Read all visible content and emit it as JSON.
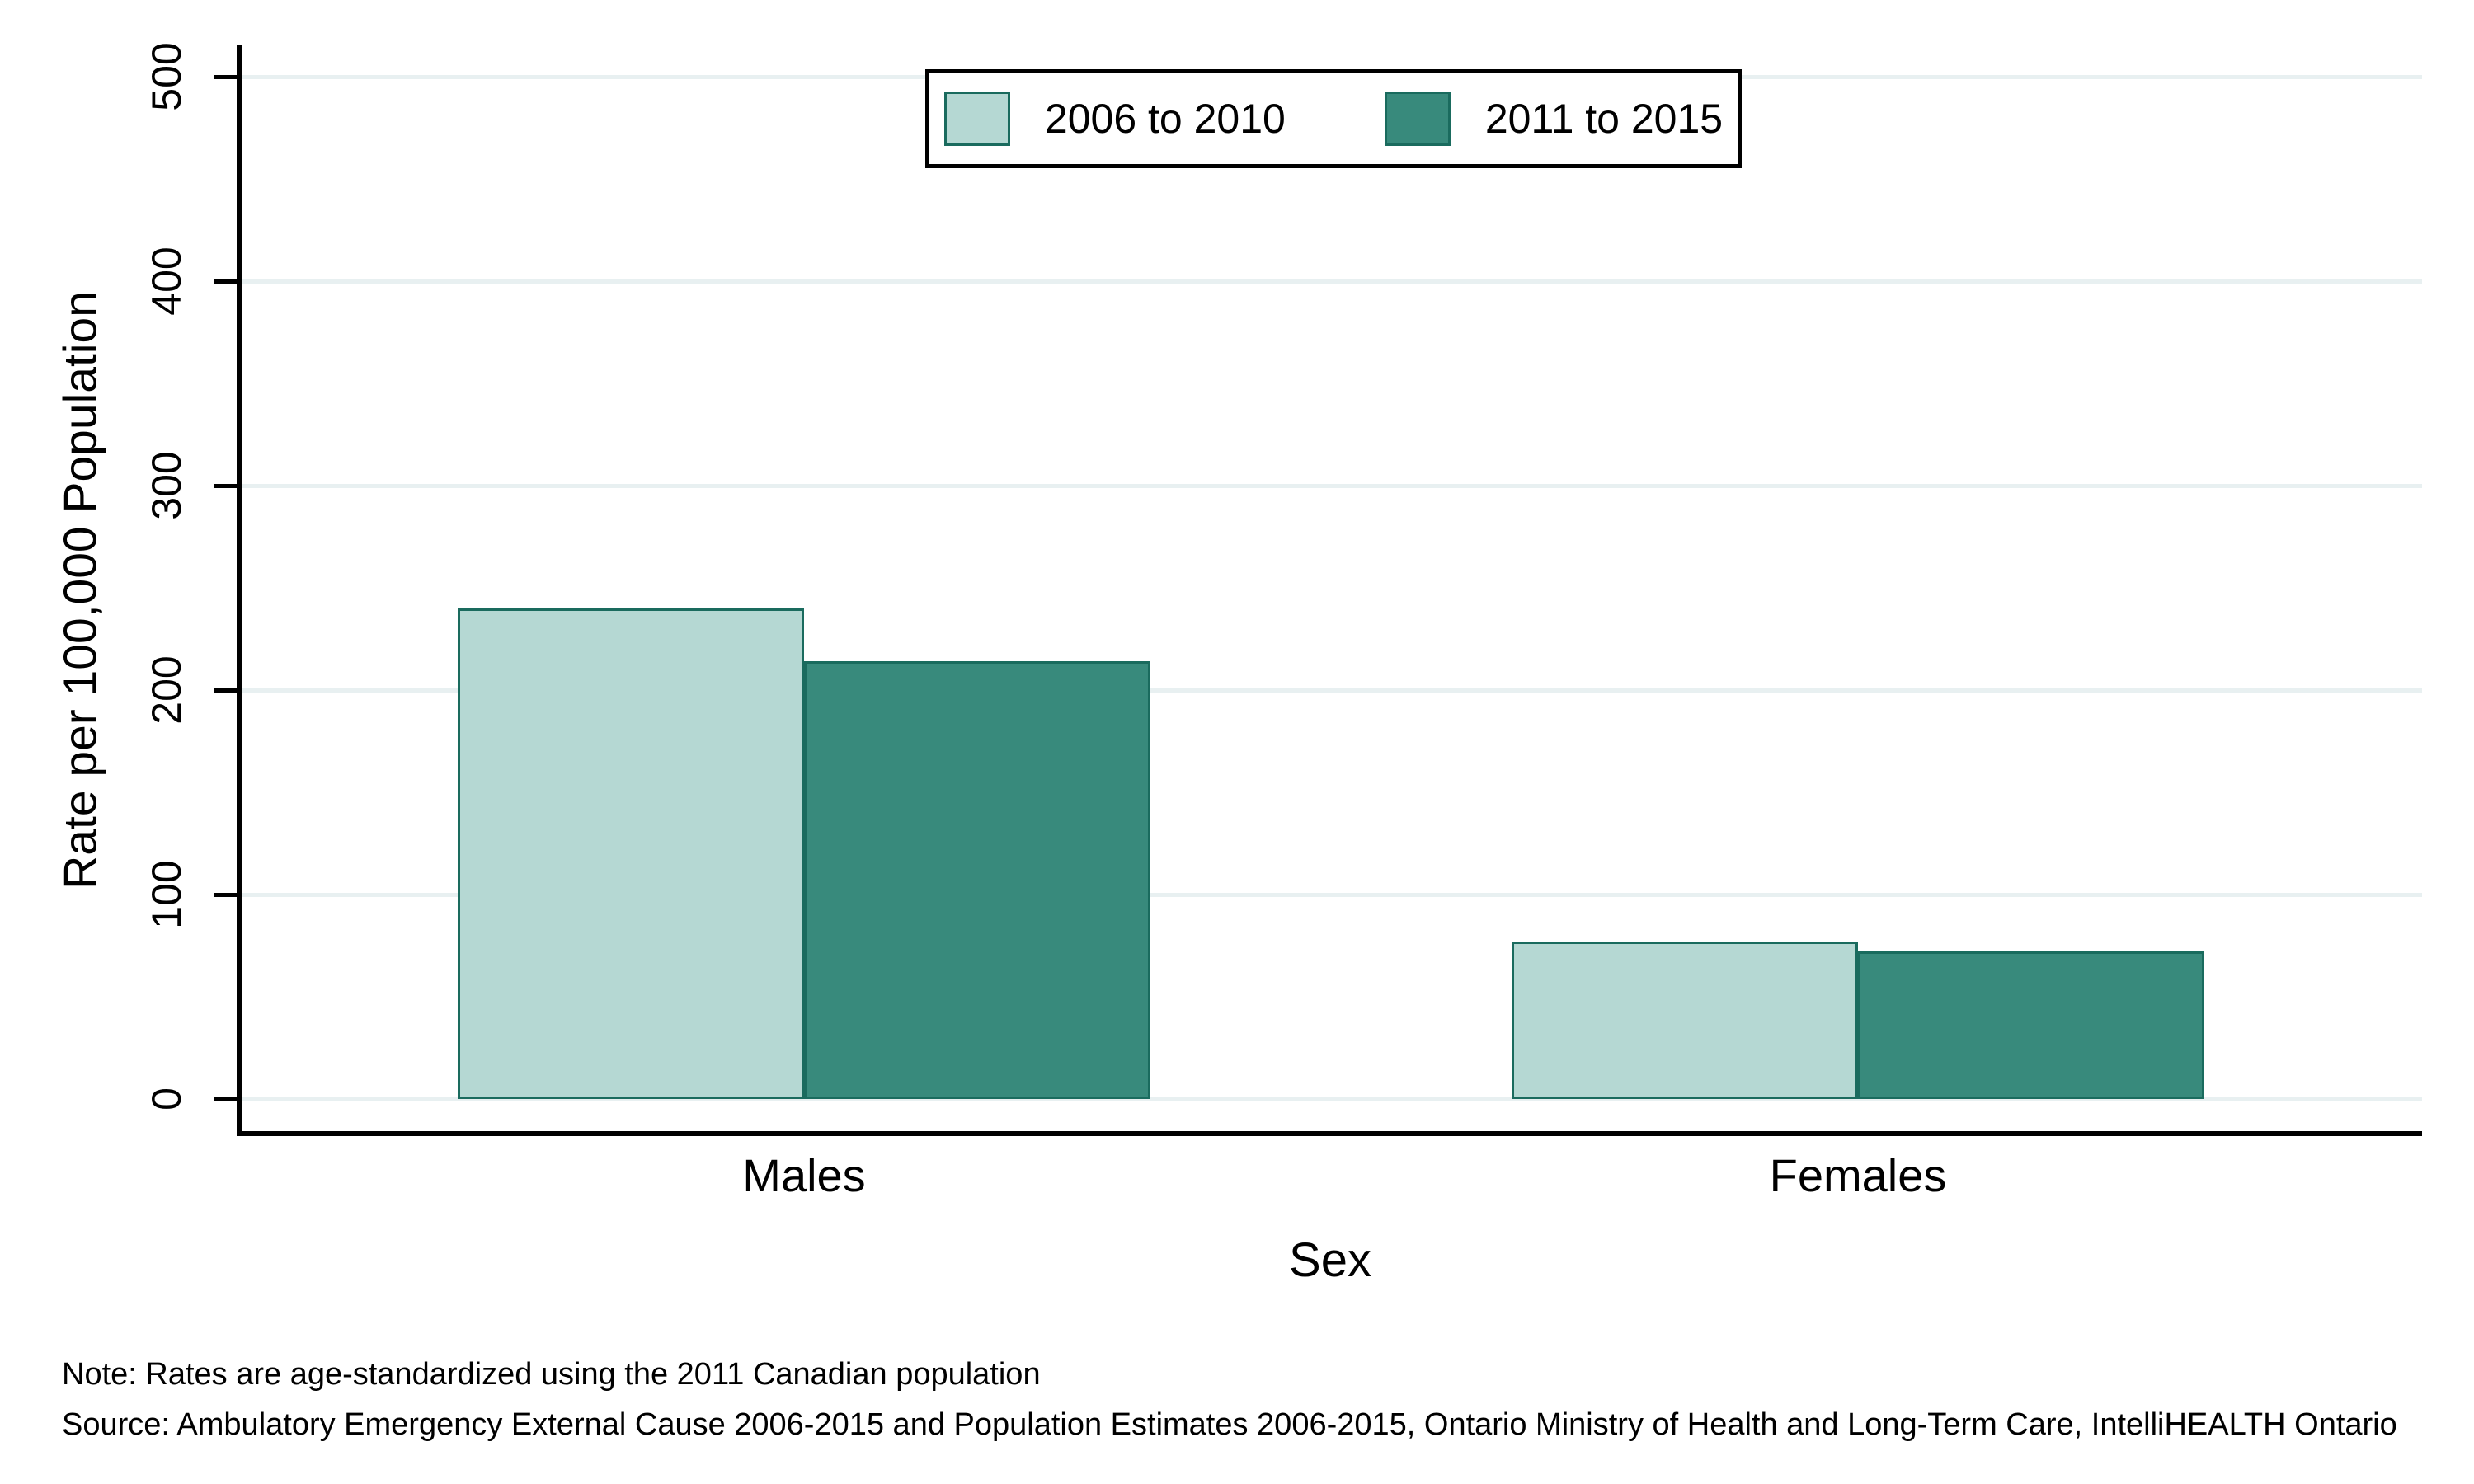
{
  "chart_data": {
    "type": "bar",
    "categories": [
      "Males",
      "Females"
    ],
    "series": [
      {
        "name": "2006 to 2010",
        "values": [
          240,
          77
        ],
        "color": "#b5d8d3",
        "border_color": "#1a6b5e"
      },
      {
        "name": "2011 to 2015",
        "values": [
          214,
          72
        ],
        "color": "#388a7c",
        "border_color": "#1a6b5e"
      }
    ],
    "title": "",
    "xlabel": "Sex",
    "ylabel": "Rate per 100,000 Population",
    "yticks": [
      0,
      100,
      200,
      300,
      400,
      500
    ],
    "ylim": [
      0,
      500
    ],
    "grid": true,
    "legend_position": "top-center"
  },
  "colors": {
    "gridline": "#e8f0f1",
    "axis": "#000000",
    "background": "#ffffff",
    "legend_border": "#000000",
    "text": "#000000"
  },
  "notes": {
    "note": "Note: Rates are age-standardized using the 2011 Canadian population",
    "source": "Source: Ambulatory Emergency External Cause 2006-2015 and Population Estimates 2006-2015, Ontario Ministry of Health and Long-Term Care, IntelliHEALTH Ontario"
  }
}
